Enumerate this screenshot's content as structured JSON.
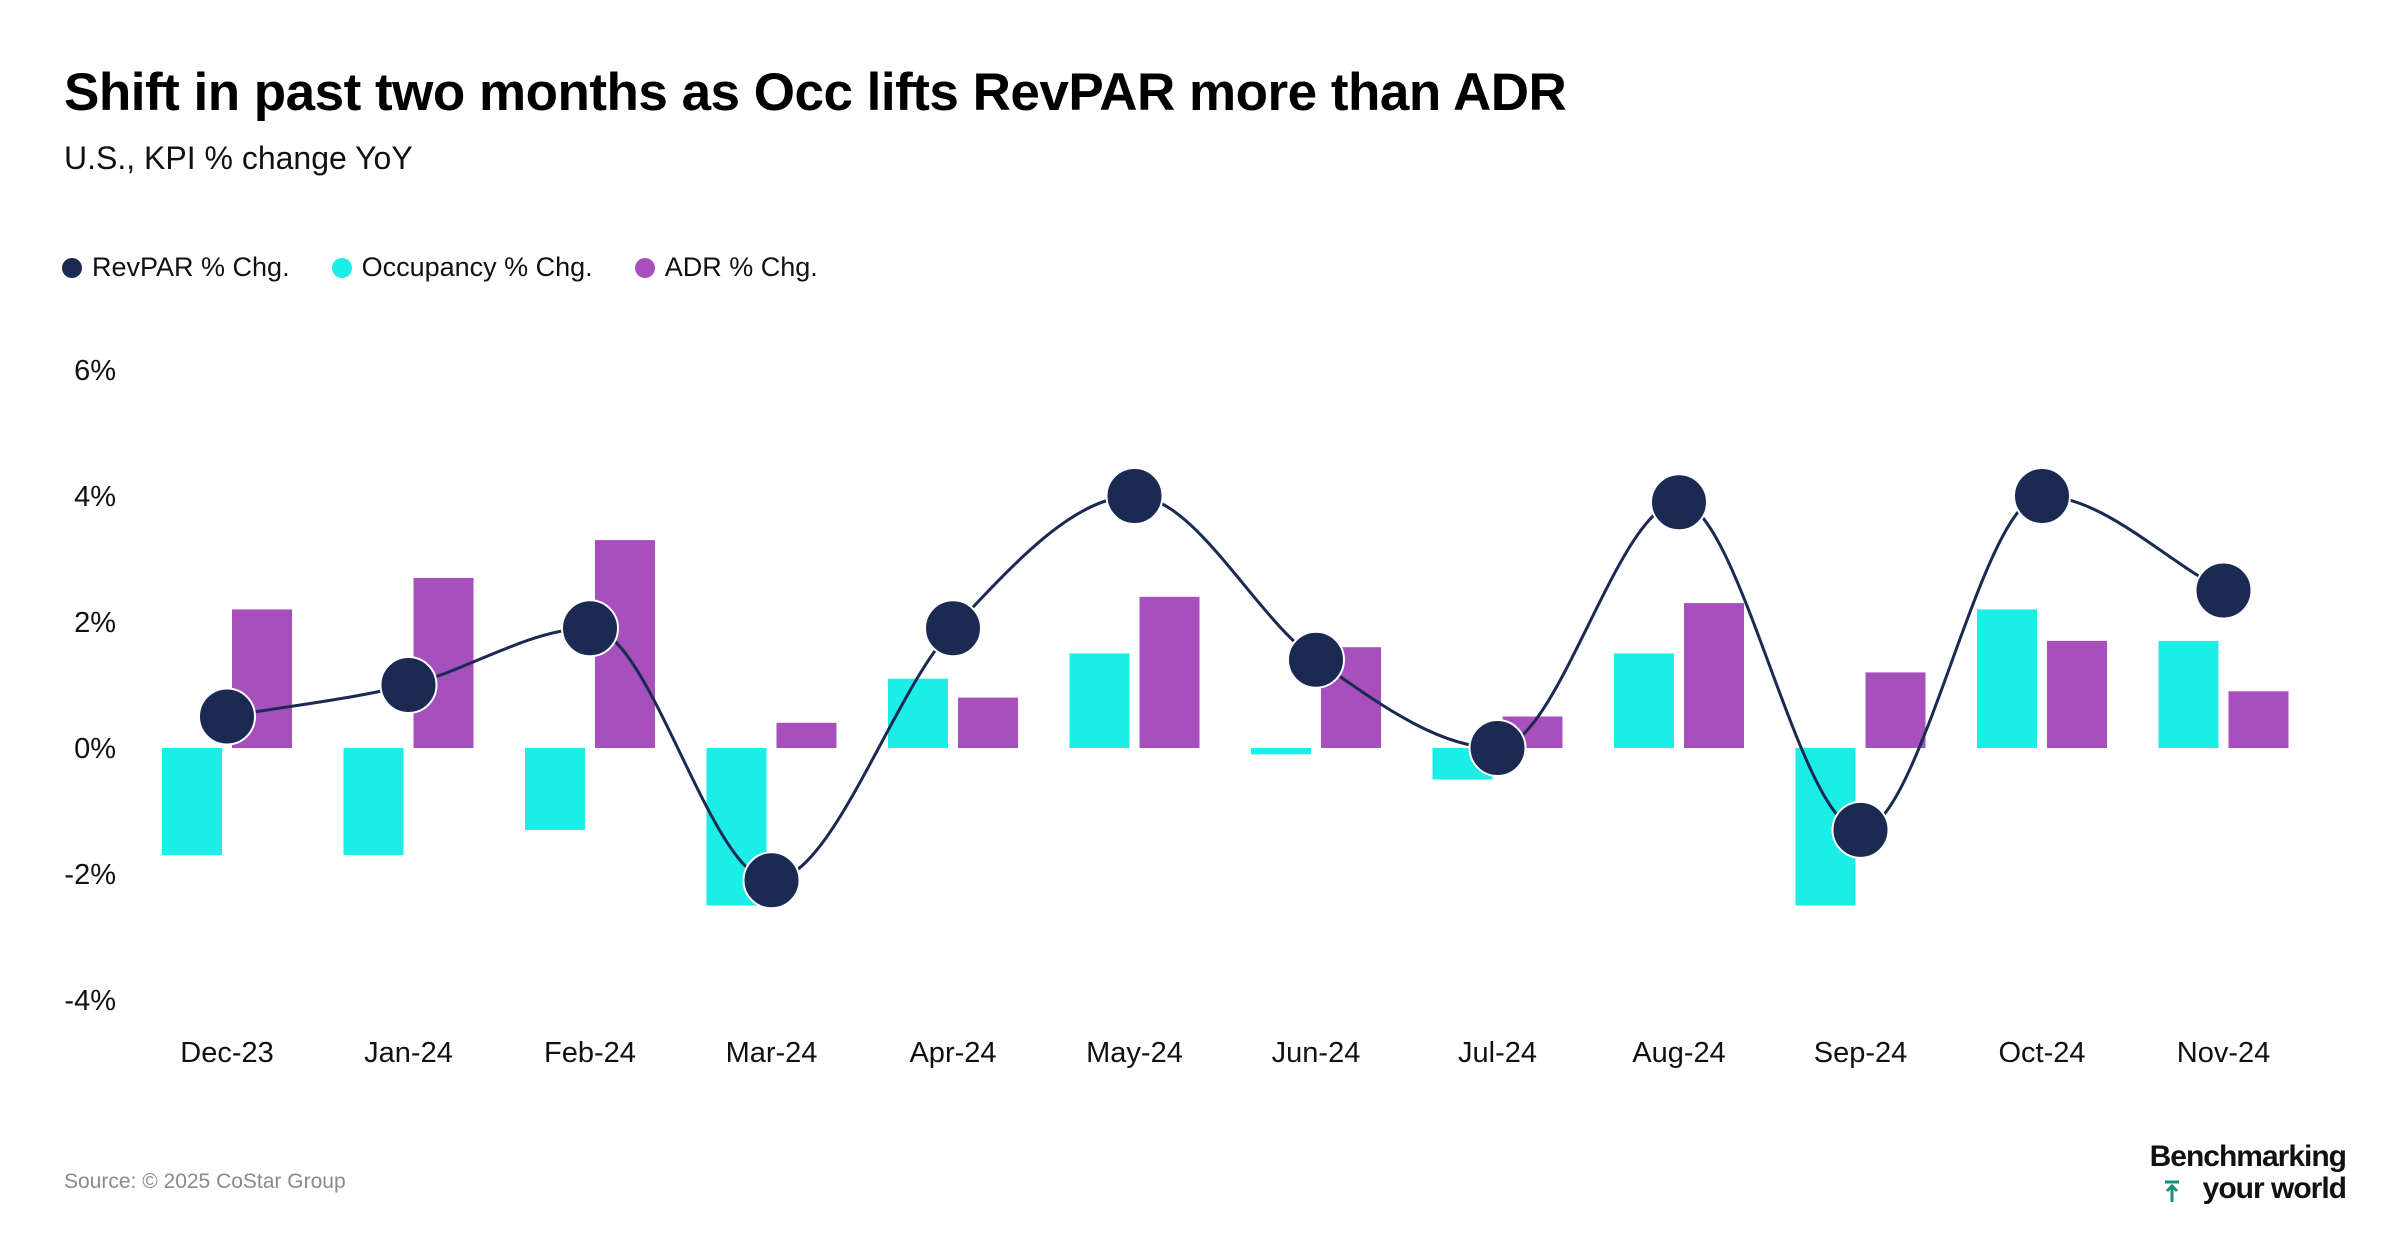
{
  "title": "Shift in past two months as Occ lifts RevPAR more than ADR",
  "subtitle": "U.S., KPI % change YoY",
  "source": "Source: © 2025 CoStar Group",
  "brand": {
    "line1": "Benchmarking",
    "line2": "your world",
    "icon": "up-arrow-icon"
  },
  "colors": {
    "revpar": "#1b2a52",
    "occupancy": "#1aeee6",
    "adr": "#a64fbd"
  },
  "chart_data": {
    "type": "bar",
    "title": "Shift in past two months as Occ lifts RevPAR more than ADR",
    "subtitle": "U.S., KPI % change YoY",
    "categories": [
      "Dec-23",
      "Jan-24",
      "Feb-24",
      "Mar-24",
      "Apr-24",
      "May-24",
      "Jun-24",
      "Jul-24",
      "Aug-24",
      "Sep-24",
      "Oct-24",
      "Nov-24"
    ],
    "series": [
      {
        "name": "RevPAR % Chg.",
        "type": "line",
        "color": "#1b2a52",
        "values": [
          0.5,
          1.0,
          1.9,
          -2.1,
          1.9,
          4.0,
          1.4,
          0.0,
          3.9,
          -1.3,
          4.0,
          2.5
        ]
      },
      {
        "name": "Occupancy % Chg.",
        "type": "bar",
        "color": "#1aeee6",
        "values": [
          -1.7,
          -1.7,
          -1.3,
          -2.5,
          1.1,
          1.5,
          -0.1,
          -0.5,
          1.5,
          -2.5,
          2.2,
          1.7
        ]
      },
      {
        "name": "ADR % Chg.",
        "type": "bar",
        "color": "#a64fbd",
        "values": [
          2.2,
          2.7,
          3.3,
          0.4,
          0.8,
          2.4,
          1.6,
          0.5,
          2.3,
          1.2,
          1.7,
          0.9
        ]
      }
    ],
    "y_ticks": [
      "6%",
      "4%",
      "2%",
      "0%",
      "-2%",
      "-4%"
    ],
    "y_tick_values": [
      6,
      4,
      2,
      0,
      -2,
      -4
    ],
    "ylim": [
      -4,
      6
    ],
    "xlabel": "",
    "ylabel": "",
    "grid": false,
    "legend_position": "top-left"
  }
}
